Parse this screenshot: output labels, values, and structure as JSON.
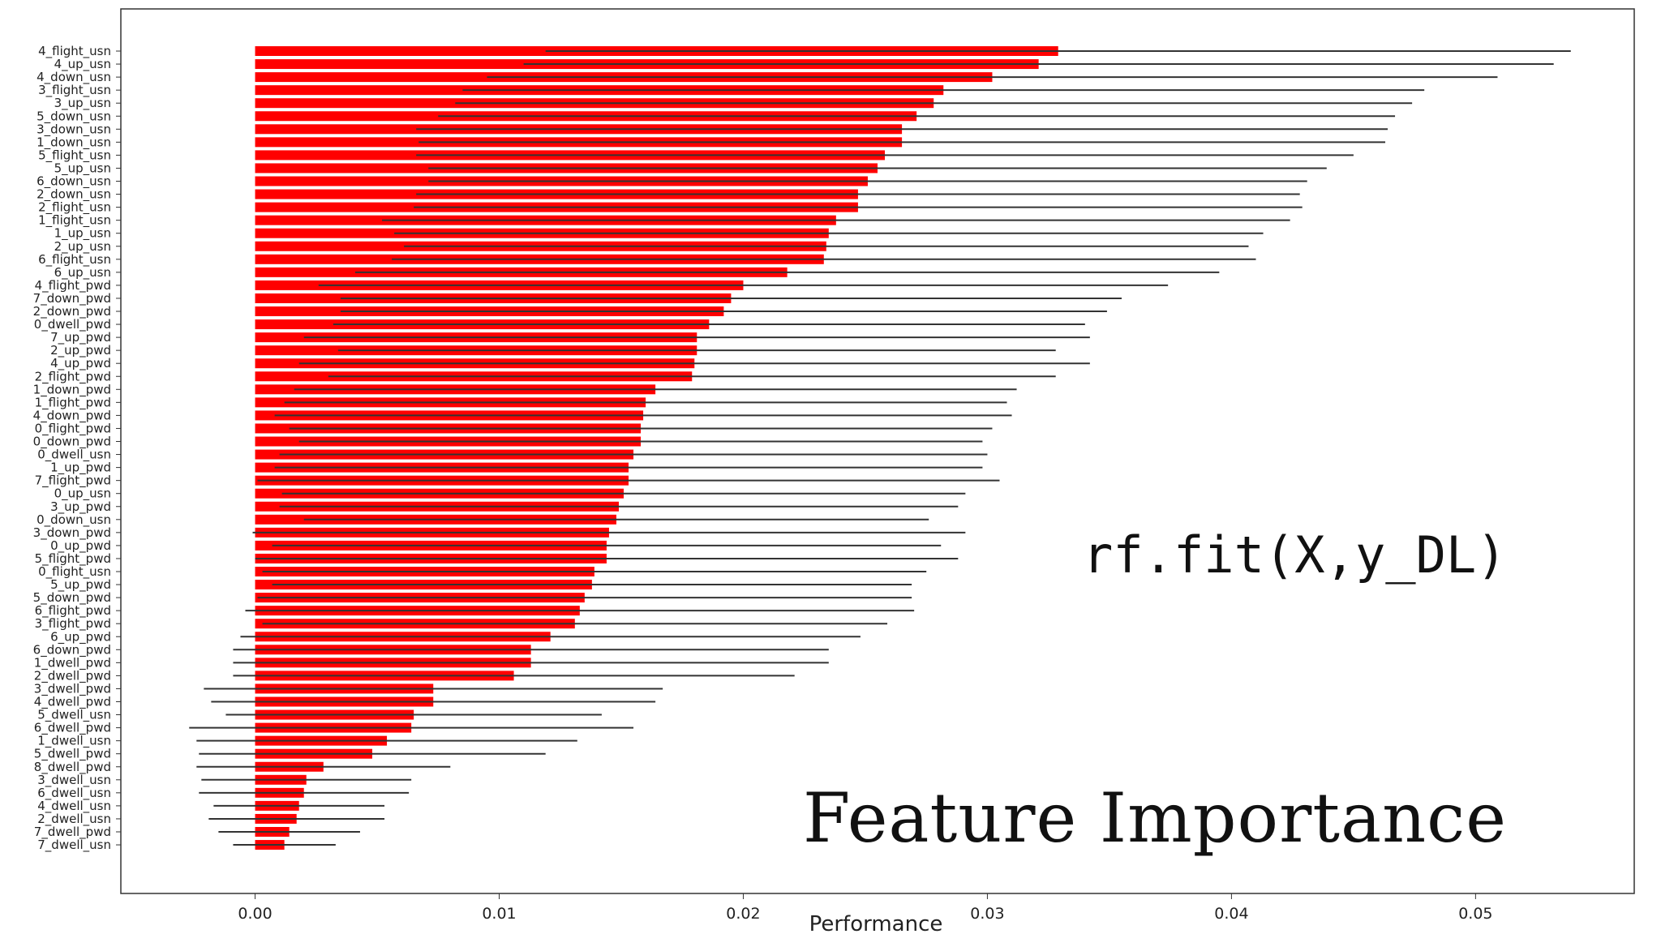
{
  "annotations": {
    "code": "rf.fit(X,y_DL)",
    "title": "Feature Importance"
  },
  "colors": {
    "bar": "#ff0000",
    "error_bar": "#333333",
    "axis": "#333333"
  },
  "chart_data": {
    "type": "bar",
    "orientation": "horizontal",
    "title": "",
    "xlabel": "Performance",
    "ylabel": "",
    "xlim": [
      -0.0055,
      0.0565
    ],
    "xticks": [
      0.0,
      0.01,
      0.02,
      0.03,
      0.04,
      0.05
    ],
    "xtick_labels": [
      "0.00",
      "0.01",
      "0.02",
      "0.03",
      "0.04",
      "0.05"
    ],
    "grid": false,
    "legend": "none",
    "categories": [
      "4_flight_usn",
      "4_up_usn",
      "4_down_usn",
      "3_flight_usn",
      "3_up_usn",
      "5_down_usn",
      "3_down_usn",
      "1_down_usn",
      "5_flight_usn",
      "5_up_usn",
      "6_down_usn",
      "2_down_usn",
      "2_flight_usn",
      "1_flight_usn",
      "1_up_usn",
      "2_up_usn",
      "6_flight_usn",
      "6_up_usn",
      "4_flight_pwd",
      "7_down_pwd",
      "2_down_pwd",
      "0_dwell_pwd",
      "7_up_pwd",
      "2_up_pwd",
      "4_up_pwd",
      "2_flight_pwd",
      "1_down_pwd",
      "1_flight_pwd",
      "4_down_pwd",
      "0_flight_pwd",
      "0_down_pwd",
      "0_dwell_usn",
      "1_up_pwd",
      "7_flight_pwd",
      "0_up_usn",
      "3_up_pwd",
      "0_down_usn",
      "3_down_pwd",
      "0_up_pwd",
      "5_flight_pwd",
      "0_flight_usn",
      "5_up_pwd",
      "5_down_pwd",
      "6_flight_pwd",
      "3_flight_pwd",
      "6_up_pwd",
      "6_down_pwd",
      "1_dwell_pwd",
      "2_dwell_pwd",
      "3_dwell_pwd",
      "4_dwell_pwd",
      "5_dwell_usn",
      "6_dwell_pwd",
      "1_dwell_usn",
      "5_dwell_pwd",
      "8_dwell_pwd",
      "3_dwell_usn",
      "6_dwell_usn",
      "4_dwell_usn",
      "2_dwell_usn",
      "7_dwell_pwd",
      "7_dwell_usn"
    ],
    "values": [
      0.0329,
      0.0321,
      0.0302,
      0.0282,
      0.0278,
      0.0271,
      0.0265,
      0.0265,
      0.0258,
      0.0255,
      0.0251,
      0.0247,
      0.0247,
      0.0238,
      0.0235,
      0.0234,
      0.0233,
      0.0218,
      0.02,
      0.0195,
      0.0192,
      0.0186,
      0.0181,
      0.0181,
      0.018,
      0.0179,
      0.0164,
      0.016,
      0.0159,
      0.0158,
      0.0158,
      0.0155,
      0.0153,
      0.0153,
      0.0151,
      0.0149,
      0.0148,
      0.0145,
      0.0144,
      0.0144,
      0.0139,
      0.0138,
      0.0135,
      0.0133,
      0.0131,
      0.0121,
      0.0113,
      0.0113,
      0.0106,
      0.0073,
      0.0073,
      0.0065,
      0.0064,
      0.0054,
      0.0048,
      0.0028,
      0.0021,
      0.002,
      0.0018,
      0.0017,
      0.0014,
      0.0012
    ],
    "errors": [
      0.021,
      0.0211,
      0.0207,
      0.0197,
      0.0196,
      0.0196,
      0.0199,
      0.0198,
      0.0192,
      0.0184,
      0.018,
      0.0181,
      0.0182,
      0.0186,
      0.0178,
      0.0173,
      0.0177,
      0.0177,
      0.0174,
      0.016,
      0.0157,
      0.0154,
      0.0161,
      0.0147,
      0.0162,
      0.0149,
      0.0148,
      0.0148,
      0.0151,
      0.0144,
      0.014,
      0.0145,
      0.0145,
      0.0152,
      0.014,
      0.0139,
      0.0128,
      0.0146,
      0.0137,
      0.0144,
      0.0136,
      0.0131,
      0.0134,
      0.0137,
      0.0128,
      0.0127,
      0.0122,
      0.0122,
      0.0115,
      0.0094,
      0.0091,
      0.0077,
      0.0091,
      0.0078,
      0.0071,
      0.0052,
      0.0043,
      0.0043,
      0.0035,
      0.0036,
      0.0029,
      0.0021
    ]
  }
}
